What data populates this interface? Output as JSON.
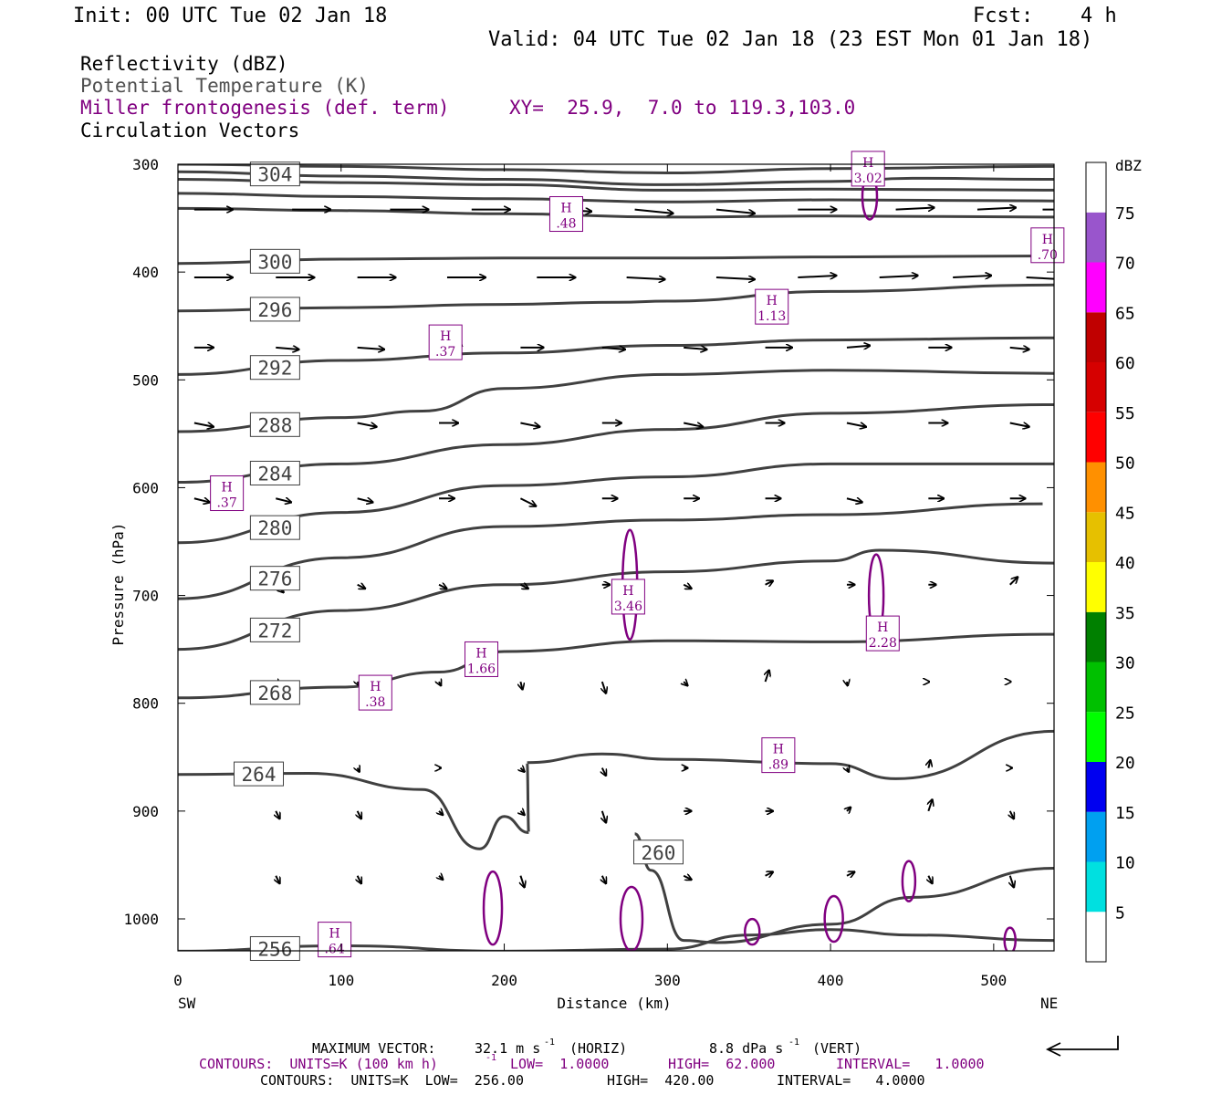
{
  "header": {
    "init": "Init: 00 UTC Tue 02 Jan 18",
    "fcst_label": "Fcst:",
    "fcst_value": "4 h",
    "valid": "Valid: 04 UTC Tue 02 Jan 18 (23 EST Mon 01 Jan 18)"
  },
  "legend": {
    "reflectivity": "Reflectivity (dBZ)",
    "theta": "Potential Temperature (K)",
    "frontogenesis": "Miller frontogenesis (def. term)",
    "xy": "XY=  25.9,  7.0 to 119.3,103.0",
    "vectors": "Circulation Vectors"
  },
  "colors": {
    "theta": "#404040",
    "frontogenesis": "#800080",
    "vectors": "#000000"
  },
  "chart_data": {
    "type": "cross-section",
    "xlabel": "Distance (km)",
    "ylabel": "Pressure (hPa)",
    "xlim": [
      0,
      537
    ],
    "ylim": [
      1035,
      300
    ],
    "x_ticks": [
      "0",
      "100",
      "200",
      "300",
      "400",
      "500"
    ],
    "x_tick_values": [
      0,
      100,
      200,
      300,
      400,
      500
    ],
    "y_ticks": [
      "300",
      "400",
      "500",
      "600",
      "700",
      "800",
      "900",
      "1000"
    ],
    "y_tick_values": [
      300,
      400,
      500,
      600,
      700,
      800,
      900,
      1000
    ],
    "left_endpoint": "SW",
    "right_endpoint": "NE",
    "colorbar": {
      "unit": "dBZ",
      "levels": [
        "5",
        "10",
        "15",
        "20",
        "25",
        "30",
        "35",
        "40",
        "45",
        "50",
        "55",
        "60",
        "65",
        "70",
        "75"
      ],
      "colors": [
        "#ffffff",
        "#00e0e0",
        "#00a0f0",
        "#0000f0",
        "#00ff00",
        "#00c000",
        "#008000",
        "#ffff00",
        "#e6c000",
        "#ff9000",
        "#ff0000",
        "#d60000",
        "#c00000",
        "#ff00ff",
        "#9955cc",
        "#ffffff"
      ]
    },
    "isentropes": [
      {
        "label": "304",
        "points": [
          [
            0,
            307
          ],
          [
            100,
            311
          ],
          [
            200,
            314
          ],
          [
            300,
            319
          ],
          [
            400,
            316
          ],
          [
            450,
            313
          ],
          [
            537,
            314
          ]
        ]
      },
      {
        "label": "",
        "points": [
          [
            0,
            300
          ],
          [
            100,
            302
          ],
          [
            200,
            305
          ],
          [
            300,
            308
          ],
          [
            400,
            304
          ],
          [
            537,
            302
          ]
        ]
      },
      {
        "label": "",
        "points": [
          [
            0,
            314
          ],
          [
            100,
            317
          ],
          [
            200,
            319
          ],
          [
            300,
            324
          ],
          [
            400,
            323
          ],
          [
            537,
            324
          ]
        ]
      },
      {
        "label": "",
        "points": [
          [
            0,
            327
          ],
          [
            100,
            330
          ],
          [
            200,
            332
          ],
          [
            300,
            335
          ],
          [
            400,
            333
          ],
          [
            537,
            334
          ]
        ]
      },
      {
        "label": "",
        "points": [
          [
            0,
            341
          ],
          [
            100,
            343
          ],
          [
            200,
            346
          ],
          [
            300,
            349
          ],
          [
            400,
            348
          ],
          [
            537,
            349
          ]
        ]
      },
      {
        "label": "300",
        "points": [
          [
            0,
            392
          ],
          [
            100,
            388
          ],
          [
            200,
            387
          ],
          [
            300,
            387
          ],
          [
            400,
            386
          ],
          [
            537,
            385
          ]
        ]
      },
      {
        "label": "296",
        "points": [
          [
            0,
            436
          ],
          [
            100,
            433
          ],
          [
            200,
            430
          ],
          [
            270,
            428
          ],
          [
            300,
            427
          ],
          [
            400,
            418
          ],
          [
            537,
            412
          ]
        ]
      },
      {
        "label": "292",
        "points": [
          [
            0,
            495
          ],
          [
            100,
            482
          ],
          [
            200,
            475
          ],
          [
            300,
            468
          ],
          [
            400,
            463
          ],
          [
            537,
            461
          ]
        ]
      },
      {
        "label": "288",
        "points": [
          [
            0,
            548
          ],
          [
            100,
            535
          ],
          [
            150,
            529
          ],
          [
            200,
            508
          ],
          [
            300,
            495
          ],
          [
            400,
            491
          ],
          [
            537,
            494
          ]
        ]
      },
      {
        "label": "284",
        "points": [
          [
            0,
            595
          ],
          [
            100,
            578
          ],
          [
            200,
            560
          ],
          [
            300,
            546
          ],
          [
            400,
            531
          ],
          [
            537,
            523
          ]
        ]
      },
      {
        "label": "280",
        "points": [
          [
            0,
            651
          ],
          [
            100,
            623
          ],
          [
            200,
            598
          ],
          [
            300,
            590
          ],
          [
            400,
            578
          ],
          [
            537,
            578
          ]
        ]
      },
      {
        "label": "276",
        "points": [
          [
            0,
            703
          ],
          [
            100,
            665
          ],
          [
            200,
            636
          ],
          [
            300,
            630
          ],
          [
            400,
            625
          ],
          [
            530,
            615
          ]
        ]
      },
      {
        "label": "272",
        "points": [
          [
            0,
            750
          ],
          [
            100,
            714
          ],
          [
            200,
            690
          ],
          [
            300,
            678
          ],
          [
            400,
            668
          ],
          [
            430,
            658
          ],
          [
            537,
            670
          ]
        ]
      },
      {
        "label": "268",
        "points": [
          [
            0,
            795
          ],
          [
            100,
            785
          ],
          [
            160,
            771
          ],
          [
            200,
            752
          ],
          [
            300,
            742
          ],
          [
            400,
            743
          ],
          [
            537,
            736
          ]
        ]
      },
      {
        "label": "264",
        "points": [
          [
            0,
            866
          ],
          [
            80,
            865
          ],
          [
            150,
            880
          ],
          [
            185,
            935
          ],
          [
            200,
            905
          ],
          [
            215,
            920
          ],
          [
            214,
            855
          ],
          [
            260,
            847
          ],
          [
            300,
            852
          ],
          [
            400,
            856
          ],
          [
            440,
            870
          ],
          [
            537,
            826
          ]
        ]
      },
      {
        "label": "260",
        "points": [
          [
            280,
            921
          ],
          [
            290,
            955
          ],
          [
            310,
            1020
          ],
          [
            330,
            1022
          ],
          [
            400,
            1005
          ],
          [
            450,
            980
          ],
          [
            537,
            953
          ]
        ]
      },
      {
        "label": "256",
        "points": [
          [
            0,
            1030
          ],
          [
            100,
            1025
          ],
          [
            200,
            1030
          ],
          [
            300,
            1028
          ],
          [
            350,
            1015
          ],
          [
            400,
            1010
          ],
          [
            450,
            1015
          ],
          [
            537,
            1020
          ]
        ]
      }
    ],
    "frontogenesis_maxima": [
      {
        "label": "H",
        "value": ".48",
        "x": 238,
        "p": 347
      },
      {
        "label": "H",
        "value": "3.02",
        "x": 423,
        "p": 305
      },
      {
        "label": "H",
        "value": ".70",
        "x": 533,
        "p": 376
      },
      {
        "label": "H",
        "value": "1.13",
        "x": 364,
        "p": 433
      },
      {
        "label": "H",
        "value": ".37",
        "x": 164,
        "p": 466
      },
      {
        "label": "H",
        "value": ".37",
        "x": 30,
        "p": 606
      },
      {
        "label": "H",
        "value": "3.46",
        "x": 276,
        "p": 702
      },
      {
        "label": "H",
        "value": "2.28",
        "x": 432,
        "p": 736
      },
      {
        "label": "H",
        "value": "1.66",
        "x": 186,
        "p": 760
      },
      {
        "label": "H",
        "value": ".38",
        "x": 121,
        "p": 791
      },
      {
        "label": "H",
        "value": ".89",
        "x": 368,
        "p": 849
      },
      {
        "label": "H",
        "value": ".64",
        "x": 96,
        "p": 1020
      }
    ],
    "vector_rows": [
      {
        "p": 342,
        "x": [
          10,
          70,
          130,
          180,
          230,
          280,
          330,
          380,
          440,
          490,
          530
        ],
        "u": [
          1,
          1,
          1,
          1,
          1,
          1,
          1,
          1,
          1,
          1,
          1
        ],
        "w": [
          0,
          0,
          0,
          0,
          0.05,
          0.1,
          0.1,
          0,
          -0.05,
          -0.05,
          0
        ]
      },
      {
        "p": 405,
        "x": [
          10,
          60,
          110,
          165,
          220,
          275,
          330,
          380,
          430,
          475,
          520
        ],
        "u": [
          1,
          1,
          1,
          1,
          1,
          1,
          1,
          1,
          1,
          1,
          1
        ],
        "w": [
          0,
          0,
          0,
          0,
          0,
          0.05,
          0.05,
          -0.05,
          -0.05,
          -0.05,
          0.05
        ]
      },
      {
        "p": 470,
        "x": [
          10,
          60,
          110,
          160,
          210,
          260,
          310,
          360,
          410,
          460,
          510
        ],
        "u": [
          0.5,
          0.6,
          0.7,
          0.6,
          0.6,
          0.6,
          0.6,
          0.7,
          0.6,
          0.6,
          0.5
        ],
        "w": [
          0,
          0.05,
          0.05,
          -0.05,
          0,
          0.05,
          0.05,
          0,
          -0.05,
          0,
          0.05
        ]
      },
      {
        "p": 540,
        "x": [
          10,
          60,
          110,
          160,
          210,
          260,
          310,
          360,
          410,
          460,
          510
        ],
        "u": [
          0.5,
          0.5,
          0.5,
          0.5,
          0.5,
          0.5,
          0.5,
          0.5,
          0.5,
          0.5,
          0.5
        ],
        "w": [
          0.1,
          0,
          0.1,
          0,
          0.1,
          0,
          0.1,
          0,
          0.1,
          0,
          0.1
        ]
      },
      {
        "p": 610,
        "x": [
          10,
          60,
          110,
          160,
          210,
          260,
          310,
          360,
          410,
          460,
          510
        ],
        "u": [
          0.4,
          0.4,
          0.4,
          0.4,
          0.4,
          0.4,
          0.4,
          0.4,
          0.4,
          0.4,
          0.4
        ],
        "w": [
          0.1,
          0.1,
          0.1,
          0,
          0.2,
          0,
          0,
          0,
          0.1,
          0,
          0
        ]
      },
      {
        "p": 690,
        "x": [
          60,
          110,
          160,
          210,
          260,
          310,
          360,
          410,
          460,
          510
        ],
        "u": [
          0.2,
          0.2,
          0.2,
          0.2,
          0.2,
          0.2,
          0.2,
          0.2,
          0.2,
          0.2
        ],
        "w": [
          0.2,
          0.1,
          0.1,
          0.1,
          0,
          0.1,
          -0.1,
          0,
          0,
          -0.2
        ]
      },
      {
        "p": 780,
        "x": [
          60,
          110,
          160,
          210,
          260,
          310,
          360,
          410,
          460,
          510
        ],
        "u": [
          0.05,
          0.05,
          0.05,
          0.05,
          0.1,
          0.1,
          0.1,
          0.02,
          0.02,
          0.02
        ],
        "w": [
          0.1,
          0.1,
          0.1,
          0.2,
          0.3,
          0.1,
          -0.3,
          0.1,
          0,
          0
        ]
      },
      {
        "p": 860,
        "x": [
          60,
          110,
          160,
          210,
          260,
          310,
          360,
          410,
          460,
          510
        ],
        "u": [
          0.05,
          0.05,
          0.05,
          0.1,
          0.1,
          0.1,
          0.1,
          0.05,
          0.05,
          0.05
        ],
        "w": [
          0.2,
          0.1,
          0,
          0.1,
          0.2,
          0,
          -0.1,
          0.1,
          -0.2,
          0
        ]
      },
      {
        "p": 900,
        "x": [
          60,
          110,
          160,
          210,
          260,
          310,
          360,
          410,
          460,
          510
        ],
        "u": [
          0.1,
          0.1,
          0.1,
          0.1,
          0.1,
          0.2,
          0.2,
          0.1,
          0.1,
          0.1
        ],
        "w": [
          0.2,
          0.2,
          0.1,
          0.1,
          0.3,
          0,
          0,
          -0.1,
          -0.3,
          0.2
        ]
      },
      {
        "p": 960,
        "x": [
          60,
          110,
          160,
          210,
          260,
          310,
          360,
          410,
          460,
          510
        ],
        "u": [
          0.1,
          0.1,
          0.1,
          0.1,
          0.1,
          0.2,
          0.2,
          0.2,
          0.1,
          0.1
        ],
        "w": [
          0.2,
          0.2,
          0.1,
          0.3,
          0.2,
          0.1,
          -0.1,
          -0.1,
          0.2,
          0.3
        ]
      }
    ]
  },
  "footer": {
    "max_vector_label": "MAXIMUM VECTOR:",
    "max_vector_horiz": "32.1 m s",
    "max_vector_horiz_unit": "(HORIZ)",
    "max_vector_vert": "8.8 dPa s",
    "max_vector_vert_unit": "(VERT)",
    "contours_purple_a": "CONTOURS:  UNITS=K (100 km h)",
    "contours_purple_b": " LOW=  1.0000",
    "contours_purple_c": "HIGH=  62.000",
    "contours_purple_d": "INTERVAL=   1.0000",
    "contours_black_a": "CONTOURS:  UNITS=K  LOW=  256.00",
    "contours_black_b": "HIGH=  420.00",
    "contours_black_c": "INTERVAL=   4.0000",
    "exponent": "-1"
  }
}
